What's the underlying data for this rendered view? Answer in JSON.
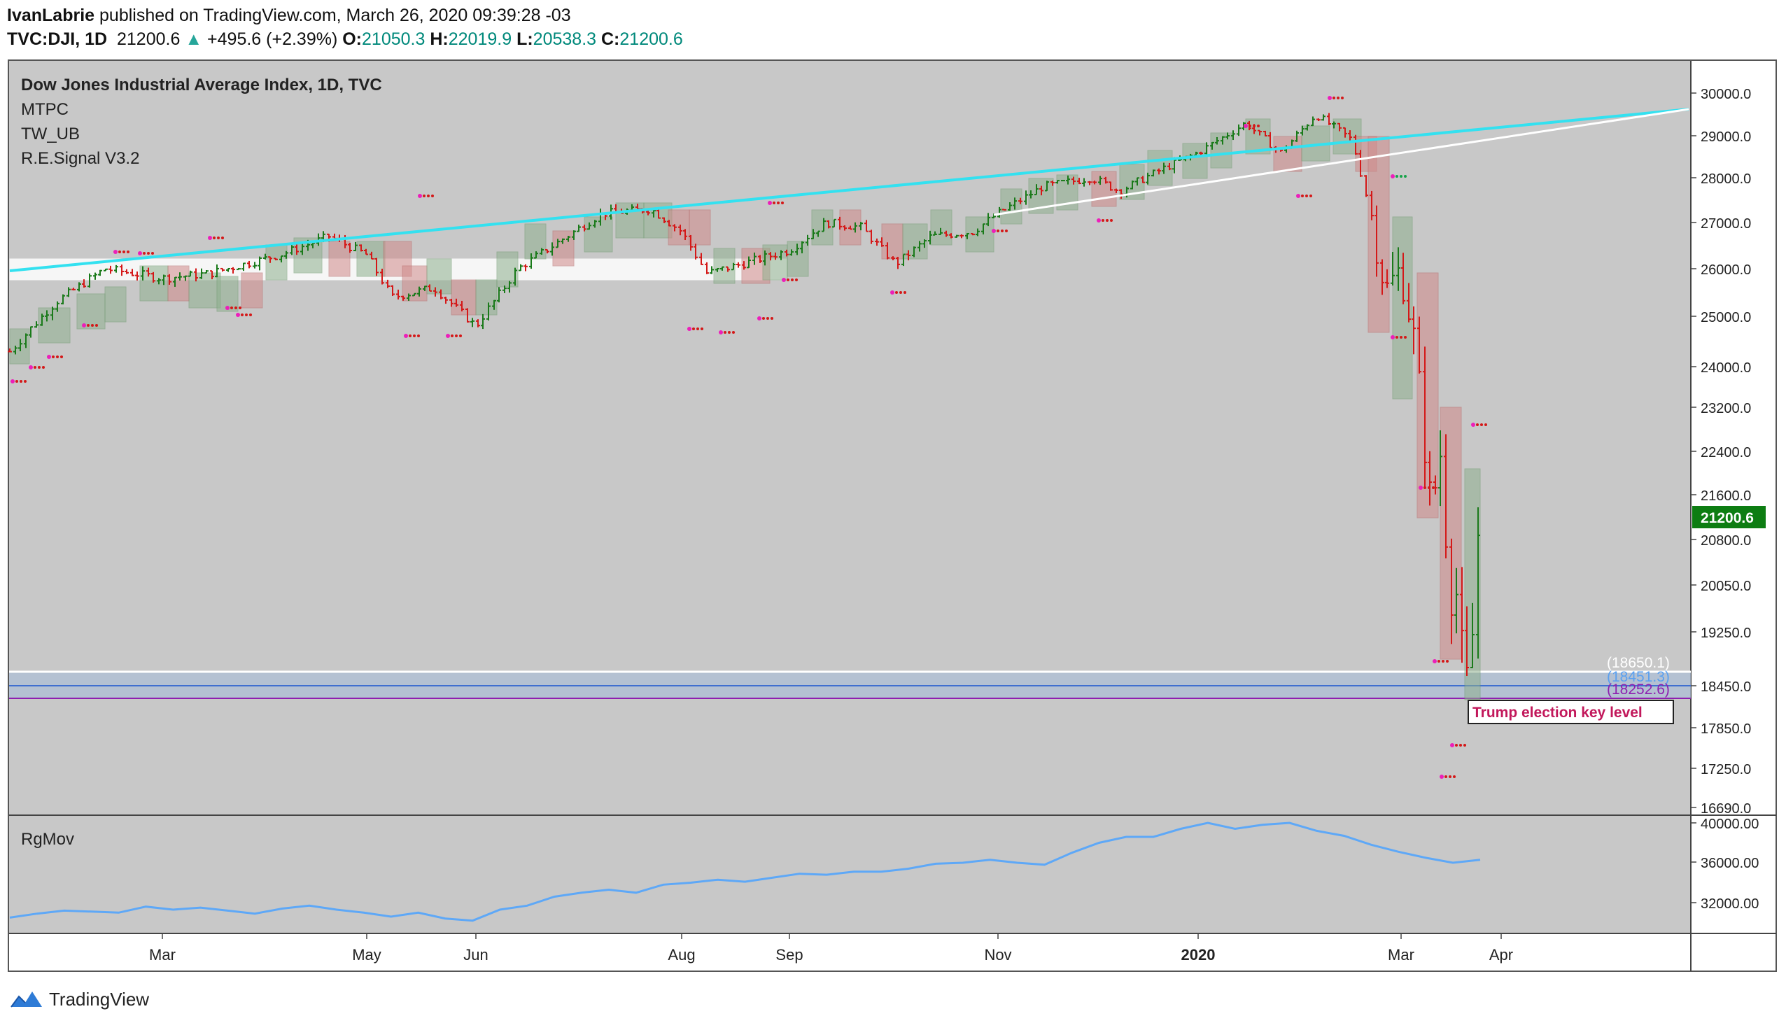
{
  "header": {
    "author": "IvanLabrie",
    "published_text": "published on TradingView.com, March 26, 2020 09:39:28 -03",
    "symbol": "TVC:DJI, 1D",
    "last": "21200.6",
    "change": "+495.6 (+2.39%)",
    "o_label": "O:",
    "o": "21050.3",
    "h_label": "H:",
    "h": "22019.9",
    "l_label": "L:",
    "l": "20538.3",
    "c_label": "C:",
    "c": "21200.6"
  },
  "legend": {
    "title": "Dow Jones Industrial Average Index, 1D, TVC",
    "items": [
      "MTPC",
      "TW_UB",
      "R.E.Signal V3.2"
    ]
  },
  "annotations": {
    "trump": "Trump election key level",
    "level_white": "(18650.1)",
    "level_blue": "(18451.3)",
    "level_purple": "(18252.6)",
    "price_badge": "21200.6"
  },
  "lower_pane": {
    "label": "RgMov"
  },
  "footer": {
    "brand": "TradingView"
  },
  "colors": {
    "background": "#c8c8c8",
    "up": "#1a7a1a",
    "down": "#d41818",
    "cyan_trendline": "#33e1f0",
    "white_trendline": "#ffffff",
    "signal_dots": "#ec1fba",
    "rgmov_line": "#5ea8f7",
    "badge": "#0d7d12",
    "trump_text": "#c2185b"
  },
  "chart_data": [
    {
      "type": "candlestick",
      "title": "Dow Jones Industrial Average Index, 1D, TVC",
      "y_ticks": [
        "30000.0",
        "29000.0",
        "28000.0",
        "27000.0",
        "26000.0",
        "25000.0",
        "24000.0",
        "23200.0",
        "22400.0",
        "21600.0",
        "20800.0",
        "20050.0",
        "19250.0",
        "18450.0",
        "17850.0",
        "17250.0",
        "16690.0"
      ],
      "x_ticks": [
        "Mar",
        "May",
        "Jun",
        "Aug",
        "Sep",
        "Nov",
        "2020",
        "Mar",
        "Apr"
      ],
      "ylim": [
        16690,
        30200
      ],
      "last_close": 21200.6,
      "approx_closes": [
        {
          "date": "2019-02",
          "close": 25800
        },
        {
          "date": "2019-03",
          "close": 25900
        },
        {
          "date": "2019-04",
          "close": 26500
        },
        {
          "date": "2019-05",
          "close": 25300
        },
        {
          "date": "2019-06",
          "close": 26600
        },
        {
          "date": "2019-07",
          "close": 27200
        },
        {
          "date": "2019-08",
          "close": 26300
        },
        {
          "date": "2019-09",
          "close": 26900
        },
        {
          "date": "2019-10",
          "close": 27000
        },
        {
          "date": "2019-11",
          "close": 28000
        },
        {
          "date": "2019-12",
          "close": 28500
        },
        {
          "date": "2020-01",
          "close": 28900
        },
        {
          "date": "2020-02-12",
          "close": 29550
        },
        {
          "date": "2020-02-28",
          "close": 25400
        },
        {
          "date": "2020-03-12",
          "close": 21200
        },
        {
          "date": "2020-03-23",
          "close": 18590
        },
        {
          "date": "2020-03-26",
          "close": 21200.6
        }
      ],
      "horizontal_levels": [
        18650.1,
        18451.3,
        18252.6
      ],
      "annotation": "Trump election key level"
    },
    {
      "type": "line",
      "series": [
        {
          "name": "RgMov",
          "values": [
            30500,
            30900,
            31200,
            31100,
            31000,
            31600,
            31300,
            31500,
            31200,
            30900,
            31400,
            31700,
            31300,
            31000,
            30600,
            31000,
            30400,
            30200,
            31300,
            31700,
            32600,
            33000,
            33300,
            33000,
            33800,
            34000,
            34300,
            34100,
            34500,
            34900,
            34800,
            35100,
            35100,
            35400,
            35900,
            36000,
            36300,
            36000,
            35800,
            37000,
            38000,
            38600,
            38600,
            39400,
            40000,
            39400,
            39800,
            40000,
            39200,
            38700,
            37800,
            37100,
            36500,
            36000,
            36300
          ]
        }
      ],
      "y_ticks": [
        "40000.00",
        "36000.00",
        "32000.00"
      ],
      "ylim": [
        29000,
        40500
      ]
    }
  ]
}
